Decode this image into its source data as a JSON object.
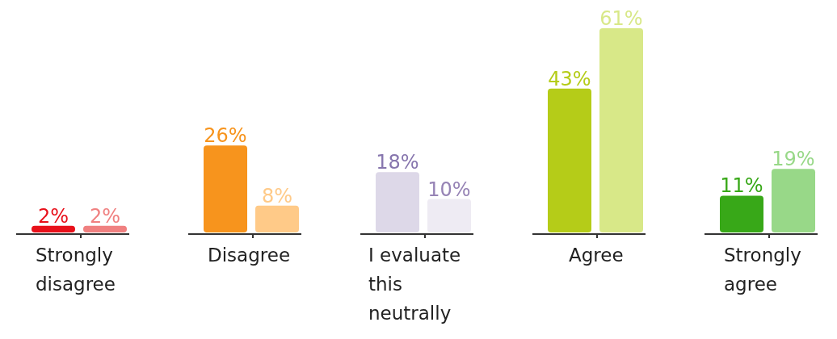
{
  "chart_data": {
    "type": "bar",
    "categories": [
      "Strongly disagree",
      "Disagree",
      "I evaluate this neutrally",
      "Agree",
      "Strongly agree"
    ],
    "series": [
      {
        "colors": [
          "#e8101a",
          "#f7941d",
          "#ddd8e8",
          "#b5cc18",
          "#38a818"
        ],
        "values": [
          2,
          26,
          18,
          43,
          11
        ],
        "value_labels": [
          "2%",
          "26%",
          "18%",
          "43%",
          "11%"
        ]
      },
      {
        "colors": [
          "#f08080",
          "#ffca88",
          "#eeebf3",
          "#d8e888",
          "#98d888"
        ],
        "values": [
          2,
          8,
          10,
          61,
          19
        ],
        "value_labels": [
          "2%",
          "8%",
          "10%",
          "61%",
          "19%"
        ]
      }
    ]
  }
}
